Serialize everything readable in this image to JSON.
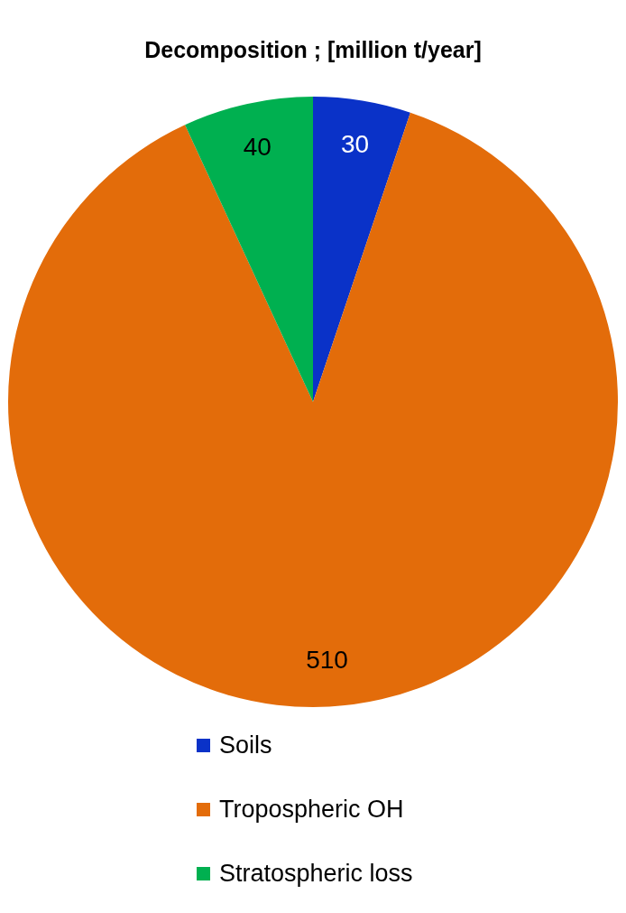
{
  "chart_data": {
    "type": "pie",
    "title": "Decomposition ; [million t/year]",
    "categories": [
      "Soils",
      "Tropospheric OH",
      "Stratospheric loss"
    ],
    "values": [
      30,
      510,
      40
    ],
    "colors": [
      "#0a32c8",
      "#e36c0a",
      "#00b050"
    ],
    "data_labels": true,
    "legend": "bottom"
  }
}
